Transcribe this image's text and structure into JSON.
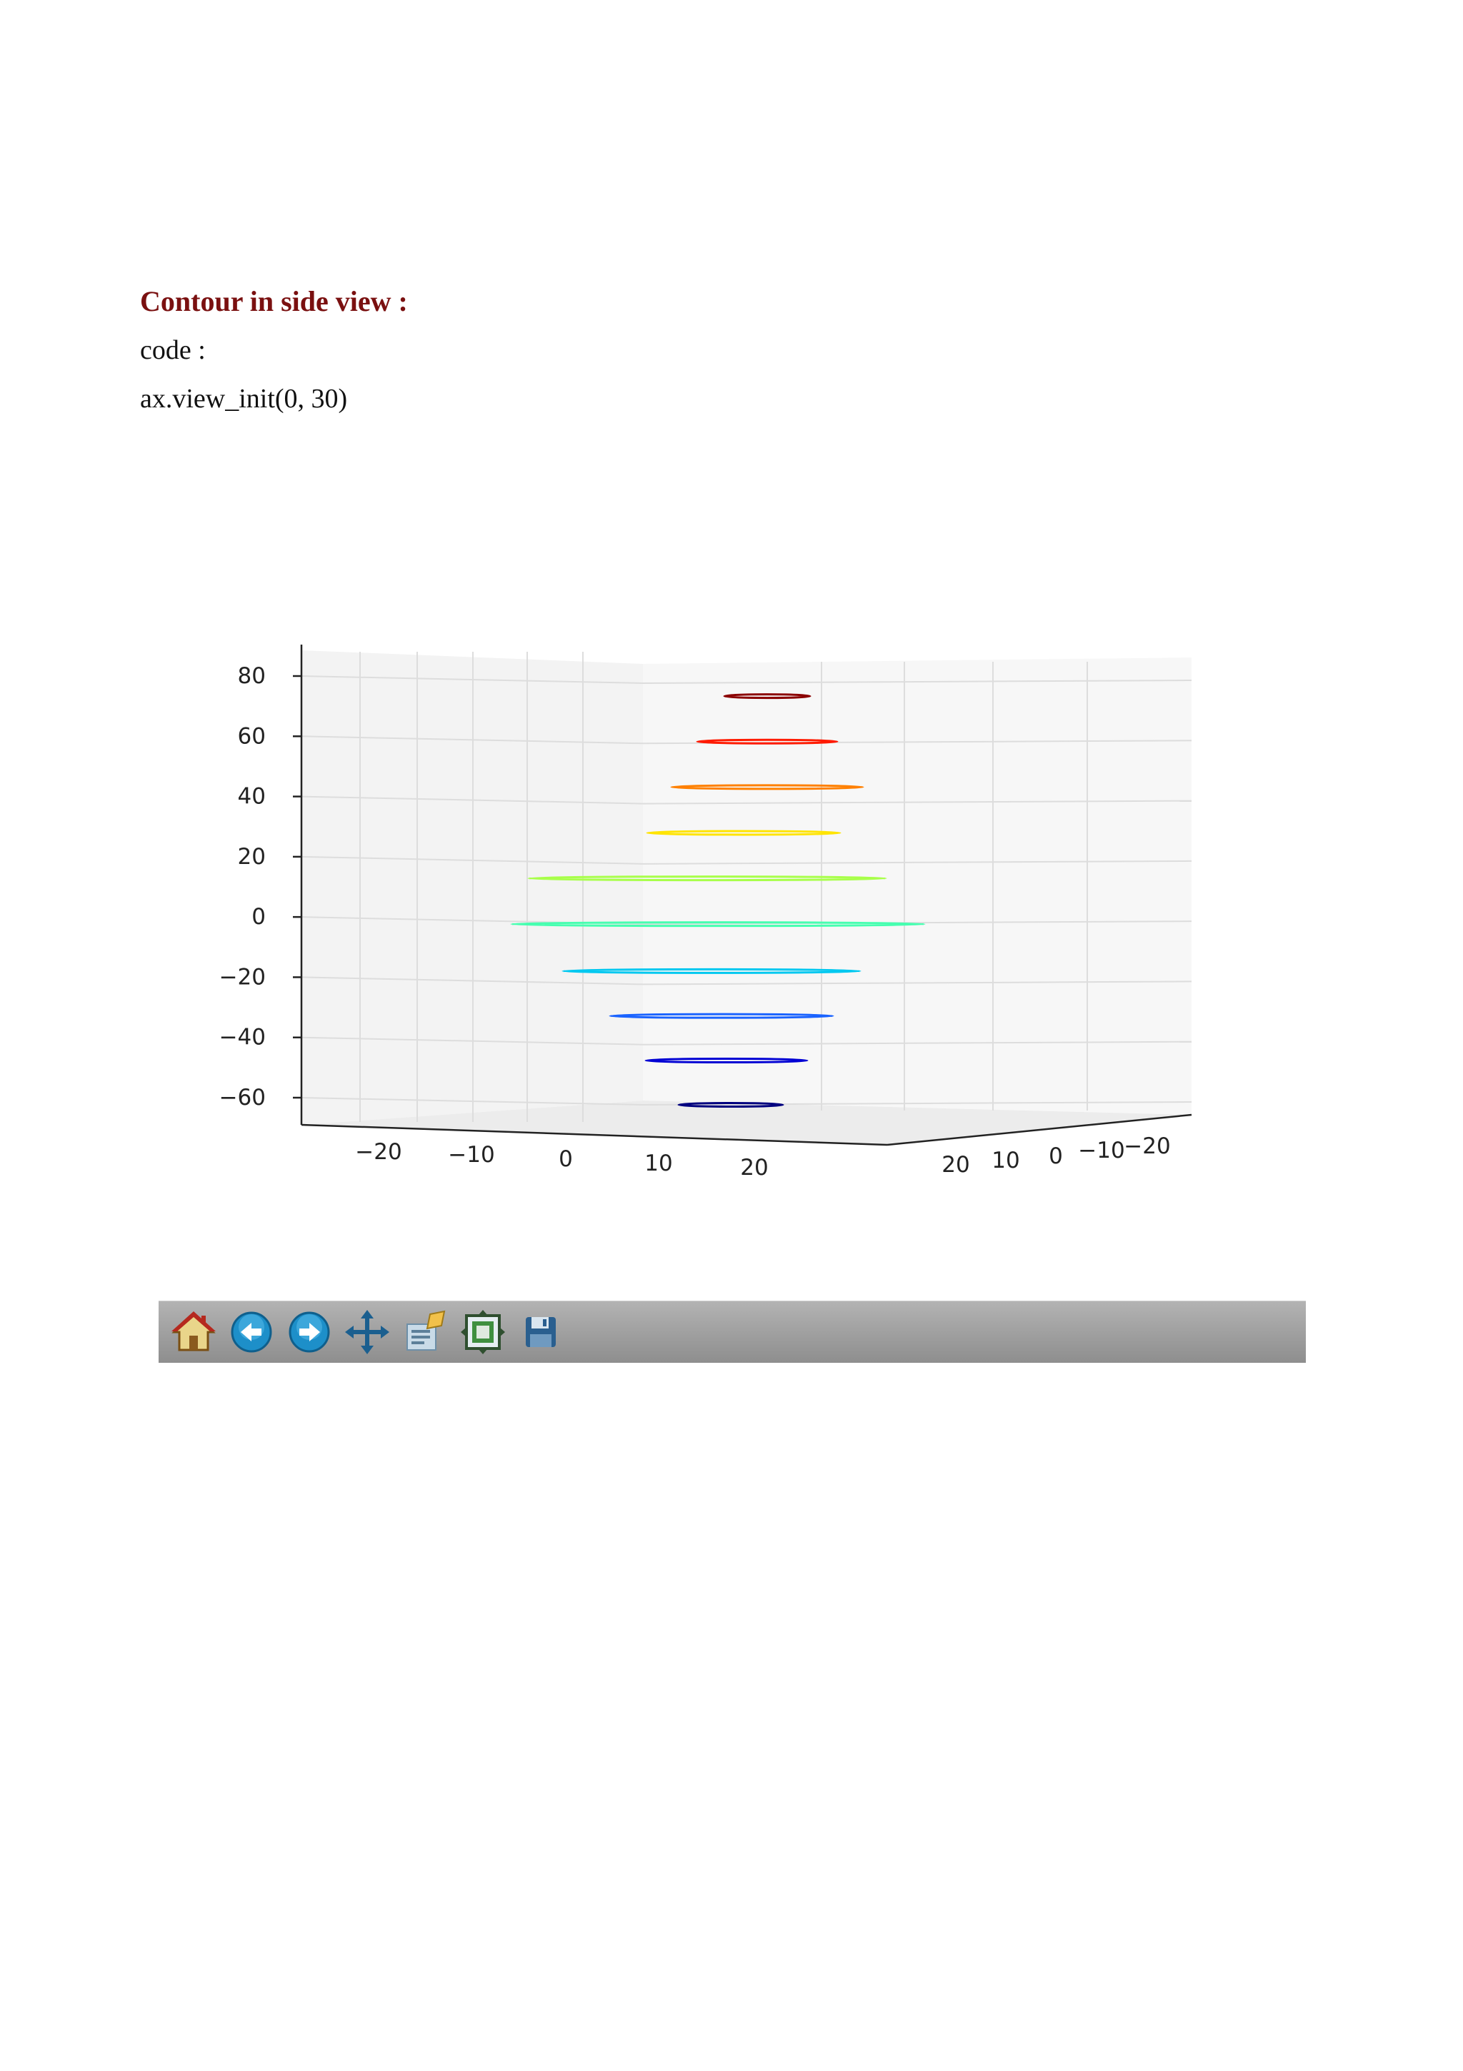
{
  "document": {
    "heading": "Contour in side view :",
    "code_label": "code :",
    "code_line": "ax.view_init(0, 30)"
  },
  "toolbar": {
    "buttons": [
      {
        "icon": "home-icon"
      },
      {
        "icon": "back-arrow-icon"
      },
      {
        "icon": "forward-arrow-icon"
      },
      {
        "icon": "pan-icon"
      },
      {
        "icon": "zoom-rect-icon"
      },
      {
        "icon": "configure-subplots-icon"
      },
      {
        "icon": "save-icon"
      }
    ]
  },
  "chart_data": {
    "type": "line",
    "view": {
      "elev": 0,
      "azim": 30
    },
    "z_ticks": [
      "80",
      "60",
      "40",
      "20",
      "0",
      "−20",
      "−40",
      "−60"
    ],
    "x_ticks": [
      "−20",
      "−10",
      "0",
      "10",
      "20"
    ],
    "y_ticks": [
      "20",
      "10",
      "0",
      "−10",
      "−20"
    ],
    "grid": true,
    "colormap": "jet",
    "series": [
      {
        "z": -60,
        "color": "#00007f"
      },
      {
        "z": -40,
        "color": "#0000d4"
      },
      {
        "z": -20,
        "color": "#1a63ff"
      },
      {
        "z": 0,
        "color": "#00c8f0"
      },
      {
        "z": 10,
        "color": "#46ffb0"
      },
      {
        "z": 20,
        "color": "#a8ff4a"
      },
      {
        "z": 30,
        "color": "#ffe400"
      },
      {
        "z": 40,
        "color": "#ff8000"
      },
      {
        "z": 60,
        "color": "#ff1a00"
      },
      {
        "z": 80,
        "color": "#8b0000"
      }
    ]
  }
}
